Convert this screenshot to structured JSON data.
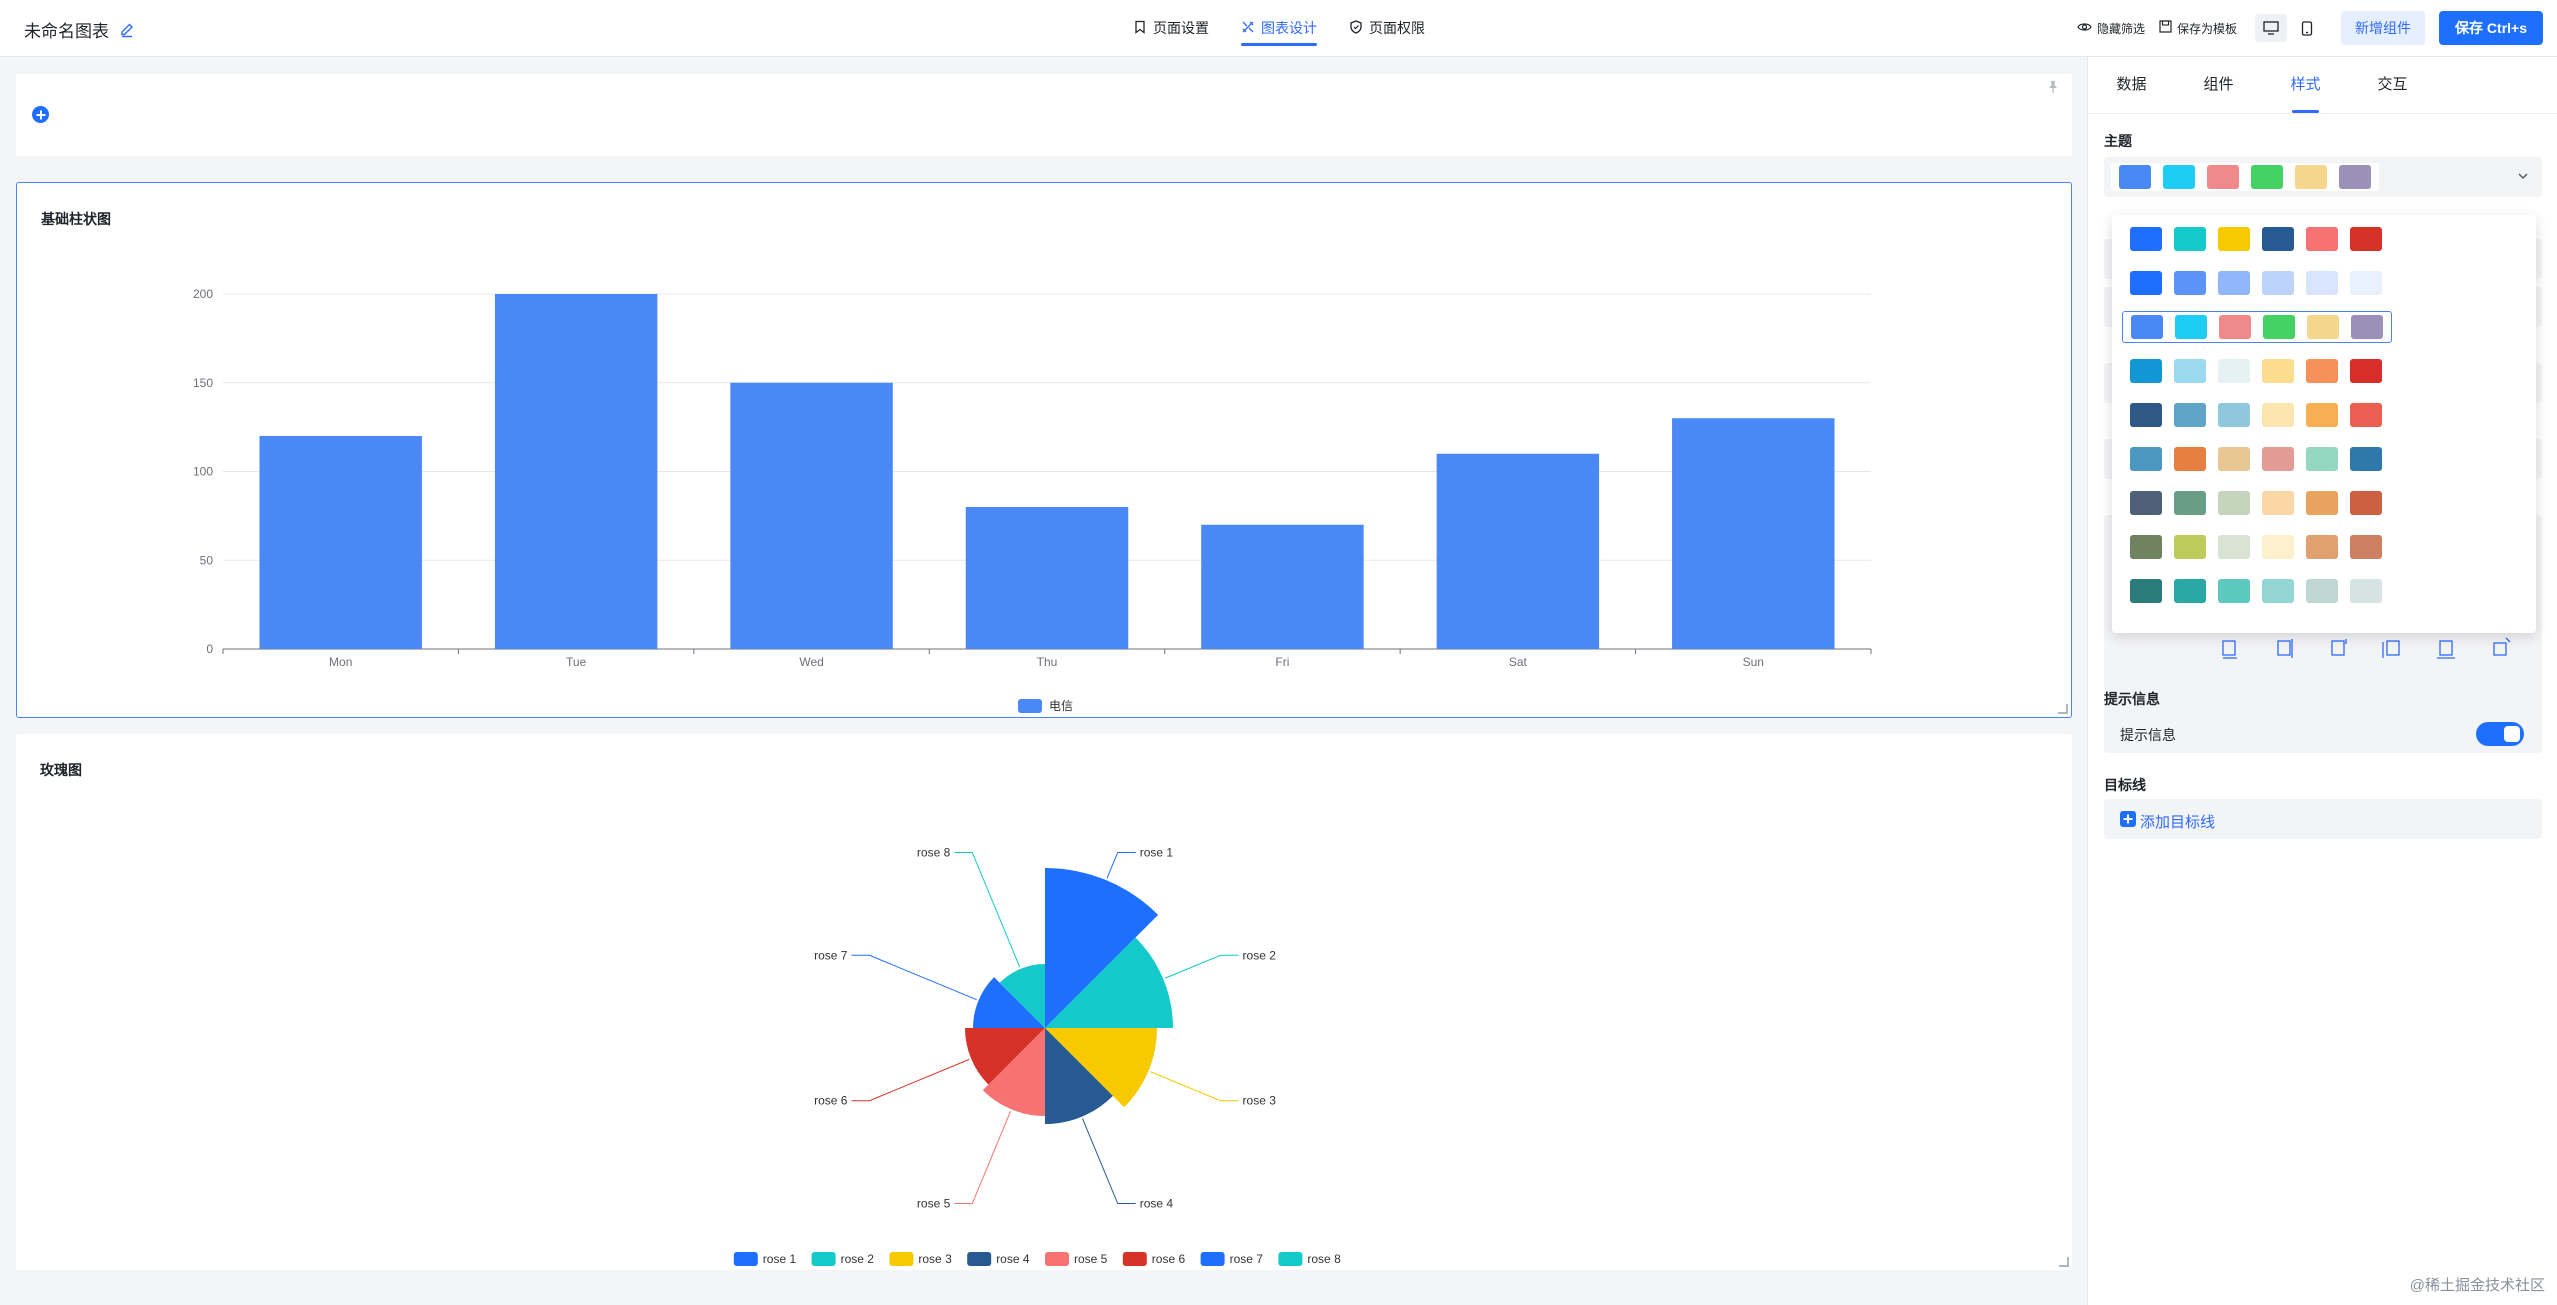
{
  "header": {
    "doc_title": "未命名图表",
    "tabs": [
      {
        "label": "页面设置",
        "icon": "bookmark-icon",
        "active": false
      },
      {
        "label": "图表设计",
        "icon": "design-icon",
        "active": true
      },
      {
        "label": "页面权限",
        "icon": "shield-icon",
        "active": false
      }
    ],
    "hide_filter_label": "隐藏筛选",
    "save_template_label": "保存为模板",
    "add_component_label": "新增组件",
    "save_label": "保存 Ctrl+s"
  },
  "bar_card": {
    "title": "基础柱状图",
    "chart_data": {
      "type": "bar",
      "categories": [
        "Mon",
        "Tue",
        "Wed",
        "Thu",
        "Fri",
        "Sat",
        "Sun"
      ],
      "series": [
        {
          "name": "电信",
          "values": [
            120,
            200,
            150,
            80,
            70,
            110,
            130
          ],
          "color": "#4a88f6"
        }
      ],
      "yticks": [
        0,
        50,
        100,
        150,
        200
      ],
      "ylim": [
        0,
        200
      ],
      "grid": true,
      "legend": "bottom-center"
    }
  },
  "rose_card": {
    "title": "玫瑰图",
    "chart_data": {
      "type": "pie",
      "rose": true,
      "categories": [
        "rose 1",
        "rose 2",
        "rose 3",
        "rose 4",
        "rose 5",
        "rose 6",
        "rose 7",
        "rose 8"
      ],
      "values": [
        100,
        80,
        70,
        60,
        55,
        50,
        45,
        40
      ],
      "colors": [
        "#1f6fff",
        "#14c9c9",
        "#f7ca00",
        "#275a92",
        "#f77272",
        "#d63228",
        "#1f6fff",
        "#14c9c9"
      ],
      "legend": "bottom-center"
    }
  },
  "panel": {
    "tabs": [
      {
        "label": "数据",
        "active": false
      },
      {
        "label": "组件",
        "active": false
      },
      {
        "label": "样式",
        "active": true
      },
      {
        "label": "交互",
        "active": false
      }
    ],
    "theme_label": "主题",
    "theme_selected": [
      "#4a88f6",
      "#1dcdf3",
      "#f08a8a",
      "#45d264",
      "#f4d68c",
      "#9a90b8"
    ],
    "palettes": [
      [
        "#1f6fff",
        "#14c9c9",
        "#f7ca00",
        "#275a92",
        "#f77272",
        "#d63228"
      ],
      [
        "#1f6fff",
        "#5b93f9",
        "#91b6fb",
        "#bdd3fc",
        "#d8e5fd",
        "#eaf1fe"
      ],
      [
        "#4a88f6",
        "#1dcdf3",
        "#f08a8a",
        "#45d264",
        "#f4d68c",
        "#9a90b8"
      ],
      [
        "#1198d4",
        "#9ad9ee",
        "#e6f1f4",
        "#fcdc8e",
        "#f8905a",
        "#d82e2a"
      ],
      [
        "#2e5886",
        "#5fa3c6",
        "#8fc7dd",
        "#fde5b0",
        "#f8af51",
        "#eb5f53"
      ],
      [
        "#4d98c1",
        "#e87f42",
        "#e9c792",
        "#e39b96",
        "#95d8c1",
        "#2f78ab"
      ],
      [
        "#4f6078",
        "#6a9d86",
        "#c5d5bd",
        "#fbd7a6",
        "#e8a35f",
        "#cc6041"
      ],
      [
        "#6f8360",
        "#bccb5a",
        "#d9e3d3",
        "#fcf1cc",
        "#e1a06f",
        "#cc8061"
      ],
      [
        "#2c7b7b",
        "#2aa8a6",
        "#5dc8be",
        "#93d6d3",
        "#bed7d2",
        "#d5e3e2"
      ]
    ],
    "selected_palette_index": 2,
    "tooltip_section": "提示信息",
    "tooltip_label": "提示信息",
    "tooltip_enabled": true,
    "target_section": "目标线",
    "add_target_label": "添加目标线"
  },
  "credit": "@稀土掘金技术社区"
}
